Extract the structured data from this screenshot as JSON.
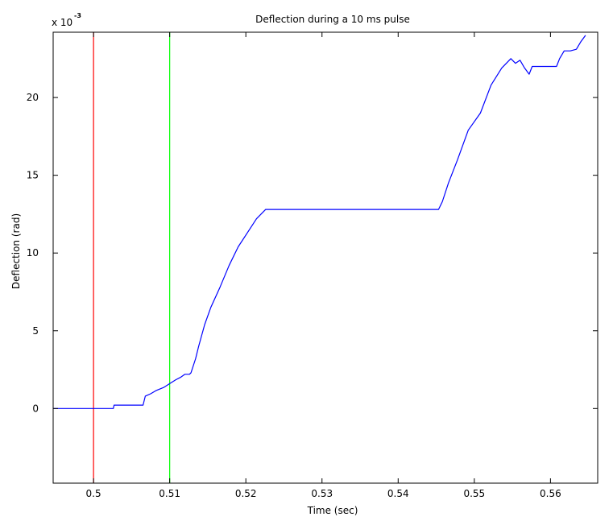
{
  "chart_data": {
    "type": "line",
    "title": "Deflection during a 10 ms pulse",
    "xlabel": "Time (sec)",
    "ylabel": "Deflection (rad)",
    "y_multiplier_base": "x 10",
    "y_multiplier_exp": "-3",
    "xlim": [
      0.4947,
      0.5662
    ],
    "ylim": [
      -4.8,
      24.2
    ],
    "x_ticks": [
      0.5,
      0.51,
      0.52,
      0.53,
      0.54,
      0.55,
      0.56
    ],
    "x_tick_labels": [
      "0.5",
      "0.51",
      "0.52",
      "0.53",
      "0.54",
      "0.55",
      "0.56"
    ],
    "y_ticks": [
      0,
      5,
      10,
      15,
      20
    ],
    "y_tick_labels": [
      "0",
      "5",
      "10",
      "15",
      "20"
    ],
    "grid": false,
    "series": [
      {
        "color": "#0000ff",
        "x": [
          0.4947,
          0.5026,
          0.5027,
          0.5065,
          0.5068,
          0.5075,
          0.5082,
          0.5092,
          0.51,
          0.5108,
          0.5114,
          0.512,
          0.5126,
          0.5128,
          0.5134,
          0.5138,
          0.5146,
          0.5154,
          0.5166,
          0.5178,
          0.519,
          0.5202,
          0.5214,
          0.5226,
          0.5236,
          0.5453,
          0.5458,
          0.5466,
          0.5478,
          0.5492,
          0.5508,
          0.5522,
          0.5536,
          0.5548,
          0.5554,
          0.556,
          0.5566,
          0.5572,
          0.5576,
          0.5582,
          0.5594,
          0.5608,
          0.5612,
          0.5618,
          0.5626,
          0.5634,
          0.564,
          0.5646
        ],
        "y": [
          0.0,
          0.0,
          0.22,
          0.22,
          0.8,
          0.95,
          1.15,
          1.35,
          1.6,
          1.85,
          2.0,
          2.2,
          2.2,
          2.3,
          3.2,
          4.0,
          5.4,
          6.5,
          7.8,
          9.2,
          10.4,
          11.3,
          12.2,
          12.8,
          12.8,
          12.8,
          13.3,
          14.5,
          16.0,
          17.9,
          19.0,
          20.8,
          21.9,
          22.5,
          22.2,
          22.4,
          21.9,
          21.5,
          22.0,
          22.0,
          22.0,
          22.0,
          22.5,
          23.0,
          23.0,
          23.1,
          23.6,
          24.0
        ]
      }
    ],
    "vlines": [
      {
        "x": 0.5,
        "color": "#ff0000"
      },
      {
        "x": 0.51,
        "color": "#00ff00"
      }
    ]
  }
}
